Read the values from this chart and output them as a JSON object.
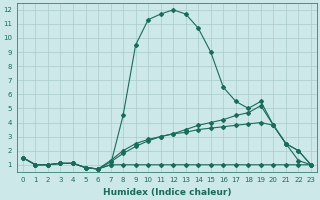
{
  "title": "",
  "xlabel": "Humidex (Indice chaleur)",
  "bg_color": "#cce8e8",
  "grid_color": "#aacccc",
  "line_color": "#1a6b5a",
  "xlim": [
    -0.5,
    23.5
  ],
  "ylim": [
    0.5,
    12.5
  ],
  "xticks": [
    0,
    1,
    2,
    3,
    4,
    5,
    6,
    7,
    8,
    9,
    10,
    11,
    12,
    13,
    14,
    15,
    16,
    17,
    18,
    19,
    20,
    21,
    22,
    23
  ],
  "yticks": [
    1,
    2,
    3,
    4,
    5,
    6,
    7,
    8,
    9,
    10,
    11,
    12
  ],
  "lines": [
    {
      "x": [
        0,
        1,
        2,
        3,
        4,
        5,
        6,
        7,
        8,
        9,
        10,
        11,
        12,
        13,
        14,
        15,
        16,
        17,
        18,
        19,
        20,
        21,
        22,
        23
      ],
      "y": [
        1.5,
        1.0,
        1.0,
        1.1,
        1.1,
        0.8,
        0.7,
        1.0,
        4.5,
        9.5,
        11.3,
        11.7,
        12.0,
        11.7,
        10.7,
        9.0,
        6.5,
        5.5,
        5.0,
        5.5,
        3.8,
        2.5,
        1.3,
        1.0
      ]
    },
    {
      "x": [
        0,
        1,
        2,
        3,
        4,
        5,
        6,
        7,
        8,
        9,
        10,
        11,
        12,
        13,
        14,
        15,
        16,
        17,
        18,
        19,
        20,
        21,
        22,
        23
      ],
      "y": [
        1.5,
        1.0,
        1.0,
        1.1,
        1.1,
        0.8,
        0.7,
        1.0,
        1.0,
        1.0,
        1.0,
        1.0,
        1.0,
        1.0,
        1.0,
        1.0,
        1.0,
        1.0,
        1.0,
        1.0,
        1.0,
        1.0,
        1.0,
        1.0
      ]
    },
    {
      "x": [
        0,
        1,
        2,
        3,
        4,
        5,
        6,
        7,
        8,
        9,
        10,
        11,
        12,
        13,
        14,
        15,
        16,
        17,
        18,
        19,
        20,
        21,
        22,
        23
      ],
      "y": [
        1.5,
        1.0,
        1.0,
        1.1,
        1.1,
        0.8,
        0.7,
        1.2,
        1.8,
        2.3,
        2.7,
        3.0,
        3.2,
        3.5,
        3.8,
        4.0,
        4.2,
        4.5,
        4.7,
        5.2,
        3.8,
        2.5,
        2.0,
        1.0
      ]
    },
    {
      "x": [
        0,
        1,
        2,
        3,
        4,
        5,
        6,
        7,
        8,
        9,
        10,
        11,
        12,
        13,
        14,
        15,
        16,
        17,
        18,
        19,
        20,
        21,
        22,
        23
      ],
      "y": [
        1.5,
        1.0,
        1.0,
        1.1,
        1.1,
        0.8,
        0.7,
        1.3,
        2.0,
        2.5,
        2.8,
        3.0,
        3.2,
        3.3,
        3.5,
        3.6,
        3.7,
        3.8,
        3.9,
        4.0,
        3.8,
        2.5,
        2.0,
        1.0
      ]
    }
  ],
  "marker": "D",
  "markersize": 2.0,
  "linewidth": 0.8,
  "label_fontsize": 6.5,
  "tick_fontsize": 5.0
}
